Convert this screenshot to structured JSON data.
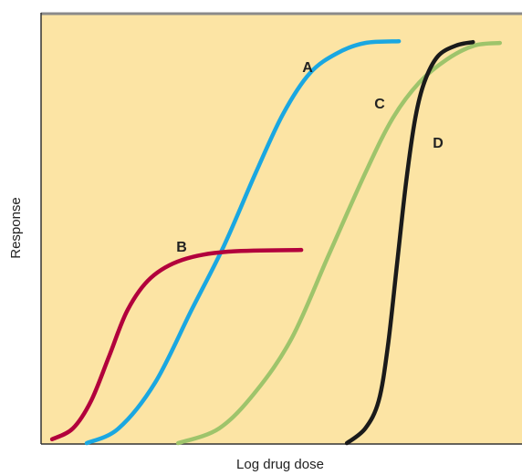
{
  "chart_data": {
    "type": "line",
    "x_label": "Log drug dose",
    "y_label": "Response",
    "xlim": [
      0,
      100
    ],
    "ylim": [
      0,
      100
    ],
    "series": [
      {
        "name": "A",
        "color": "#1aa7e1",
        "x": [
          9.5,
          16.1,
          23.7,
          31.3,
          38.0,
          44.6,
          50.3,
          55.9,
          61.7,
          67.4,
          74.4
        ],
        "values": [
          0.2,
          3.6,
          14.2,
          31.1,
          45.9,
          62.8,
          76.5,
          86.0,
          90.7,
          93.0,
          93.4
        ]
      },
      {
        "name": "B",
        "color": "#b2003c",
        "x": [
          2.3,
          6.6,
          10.4,
          14.2,
          18.0,
          22.8,
          29.4,
          38.9,
          54.1
        ],
        "values": [
          1.1,
          3.6,
          10.0,
          20.5,
          31.1,
          38.5,
          42.7,
          44.6,
          45.0
        ]
      },
      {
        "name": "C",
        "color": "#9ec46b",
        "x": [
          28.5,
          37.0,
          44.6,
          52.2,
          59.8,
          67.4,
          73.1,
          78.7,
          84.4,
          90.1,
          95.4
        ],
        "values": [
          0.2,
          3.6,
          12.1,
          24.7,
          43.8,
          62.8,
          75.5,
          83.9,
          89.2,
          92.4,
          93.0
        ]
      },
      {
        "name": "D",
        "color": "#1a1a1a",
        "x": [
          63.6,
          67.4,
          70.2,
          72.1,
          74.0,
          75.9,
          77.8,
          79.7,
          82.5,
          86.3,
          89.8
        ],
        "values": [
          0.2,
          3.6,
          10.0,
          22.6,
          41.6,
          60.7,
          75.5,
          83.9,
          89.9,
          92.4,
          93.2
        ]
      }
    ]
  }
}
